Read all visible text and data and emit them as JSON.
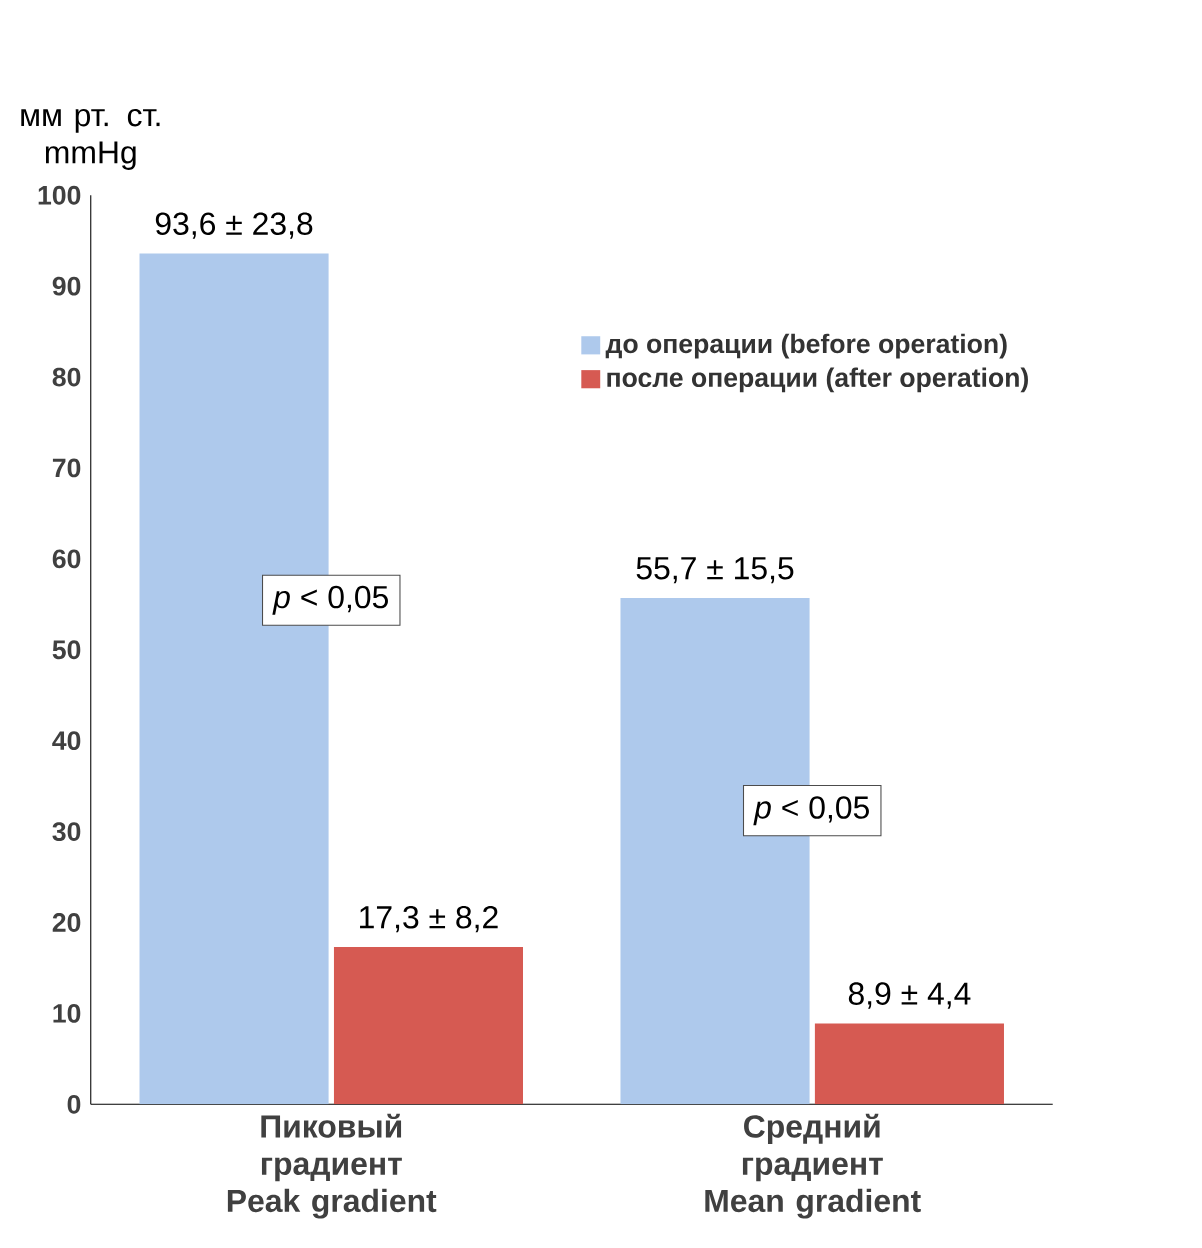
{
  "chart_data": {
    "type": "bar",
    "ylabel": "мм рт. ст. mmHg",
    "categories": [
      "Пиковый градиент Peak gradient",
      "Средний градиент Mean gradient"
    ],
    "series": [
      {
        "name": "до операции (before operation)",
        "color": "#aec9ec",
        "values": [
          93.6,
          55.7
        ],
        "value_labels": [
          "93,6 ± 23,8",
          "55,7 ± 15,5"
        ]
      },
      {
        "name": "после операции (after operation)",
        "color": "#d65a52",
        "values": [
          17.3,
          8.9
        ],
        "value_labels": [
          "17,3 ± 8,2",
          "8,9 ± 4,4"
        ]
      }
    ],
    "annotations": [
      "*p* < 0,05",
      "*p* < 0,05"
    ],
    "ylim": [
      0,
      100
    ],
    "yticks": [
      0,
      10,
      20,
      30,
      40,
      50,
      60,
      70,
      80,
      90,
      100
    ],
    "grid": false,
    "legend": "top right"
  }
}
